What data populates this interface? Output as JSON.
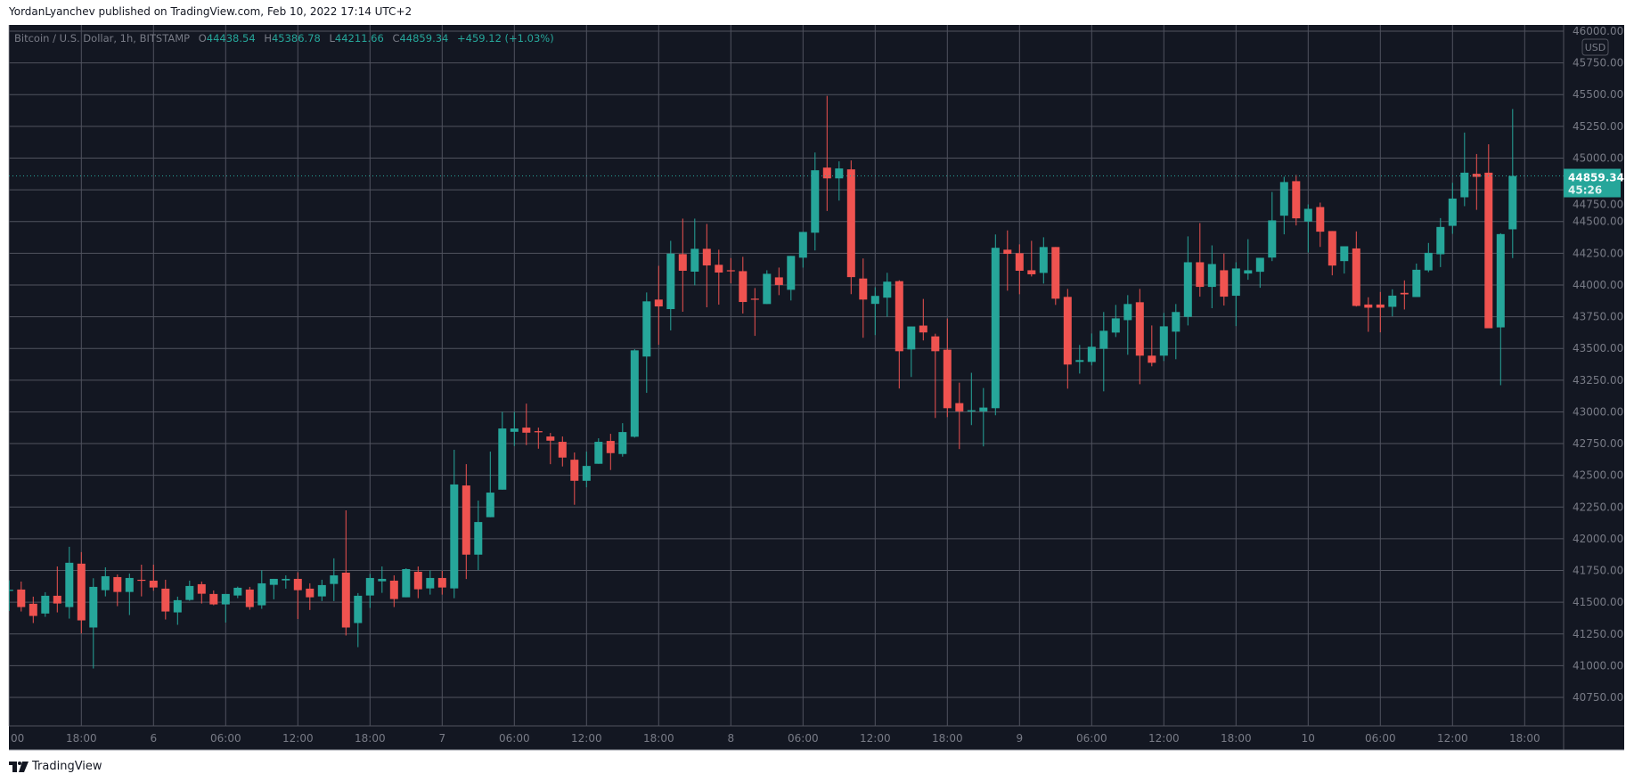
{
  "header": {
    "published": "YordanLyanchev published on TradingView.com, Feb 10, 2022 17:14 UTC+2"
  },
  "legend": {
    "symbol": "Bitcoin / U.S. Dollar, 1h, BITSTAMP",
    "o_label": "O",
    "o_value": "44438.54",
    "h_label": "H",
    "h_value": "45386.78",
    "l_label": "L",
    "l_value": "44211.66",
    "c_label": "C",
    "c_value": "44859.34",
    "change": "+459.12 (+1.03%)"
  },
  "price_axis": {
    "currency": "USD",
    "ticks": [
      46000,
      45750,
      45500,
      45250,
      45000,
      44750,
      44500,
      44250,
      44000,
      43750,
      43500,
      43250,
      43000,
      42750,
      42500,
      42250,
      42000,
      41750,
      41500,
      41250,
      41000,
      40750
    ],
    "tick_labels": [
      "46000.00",
      "45750.00",
      "45500.00",
      "45250.00",
      "45000.00",
      "44750.00",
      "44500.00",
      "44250.00",
      "44000.00",
      "43750.00",
      "43500.00",
      "43250.00",
      "43000.00",
      "42750.00",
      "42500.00",
      "42250.00",
      "42000.00",
      "41750.00",
      "41500.00",
      "41250.00",
      "41000.00",
      "40750.00"
    ],
    "last_price": "44859.34",
    "countdown": "45:26"
  },
  "time_axis": {
    "labels": [
      "00",
      "18:00",
      "6",
      "06:00",
      "12:00",
      "18:00",
      "7",
      "06:00",
      "12:00",
      "18:00",
      "8",
      "06:00",
      "12:00",
      "18:00",
      "9",
      "06:00",
      "12:00",
      "18:00",
      "10",
      "06:00",
      "12:00",
      "18:00"
    ]
  },
  "colors": {
    "up": "#26a69a",
    "down": "#ef5350",
    "background": "#131722",
    "grid": "#50535e",
    "axis_text": "#787b86"
  },
  "footer": {
    "brand": "TradingView"
  },
  "chart_data": {
    "type": "candlestick",
    "symbol": "Bitcoin / U.S. Dollar",
    "interval": "1h",
    "exchange": "BITSTAMP",
    "ylim": [
      40750,
      46000
    ],
    "grid": true,
    "fields": [
      "time",
      "open",
      "high",
      "low",
      "close"
    ],
    "candles": [
      [
        "02-05 12:00",
        41590,
        41672,
        41432,
        41598
      ],
      [
        "02-05 13:00",
        41600,
        41663,
        41427,
        41462
      ],
      [
        "02-05 14:00",
        41488,
        41544,
        41336,
        41392
      ],
      [
        "02-05 15:00",
        41411,
        41579,
        41385,
        41551
      ],
      [
        "02-05 16:00",
        41551,
        41782,
        41420,
        41490
      ],
      [
        "02-05 17:00",
        41462,
        41937,
        41371,
        41811
      ],
      [
        "02-05 18:00",
        41804,
        41895,
        41254,
        41357
      ],
      [
        "02-05 19:00",
        41301,
        41689,
        40978,
        41621
      ],
      [
        "02-05 20:00",
        41595,
        41775,
        41546,
        41705
      ],
      [
        "02-05 21:00",
        41698,
        41719,
        41469,
        41581
      ],
      [
        "02-05 22:00",
        41581,
        41726,
        41399,
        41691
      ],
      [
        "02-05 23:00",
        41677,
        41796,
        41546,
        41673
      ],
      [
        "02-06 00:00",
        41670,
        41796,
        41591,
        41616
      ],
      [
        "02-06 01:00",
        41607,
        41677,
        41364,
        41427
      ],
      [
        "02-06 02:00",
        41420,
        41544,
        41322,
        41516
      ],
      [
        "02-06 03:00",
        41518,
        41670,
        41511,
        41628
      ],
      [
        "02-06 04:00",
        41642,
        41663,
        41490,
        41567
      ],
      [
        "02-06 05:00",
        41565,
        41593,
        41476,
        41483
      ],
      [
        "02-06 06:00",
        41483,
        41565,
        41340,
        41565
      ],
      [
        "02-06 07:00",
        41553,
        41623,
        41532,
        41614
      ],
      [
        "02-06 08:00",
        41600,
        41621,
        41441,
        41462
      ],
      [
        "02-06 09:00",
        41476,
        41752,
        41448,
        41649
      ],
      [
        "02-06 10:00",
        41637,
        41684,
        41523,
        41684
      ],
      [
        "02-06 11:00",
        41672,
        41712,
        41607,
        41684
      ],
      [
        "02-06 12:00",
        41684,
        41736,
        41368,
        41595
      ],
      [
        "02-06 13:00",
        41607,
        41649,
        41439,
        41539
      ],
      [
        "02-06 14:00",
        41546,
        41677,
        41509,
        41635
      ],
      [
        "02-06 15:00",
        41644,
        41846,
        41509,
        41712
      ],
      [
        "02-06 16:00",
        41733,
        42224,
        41238,
        41301
      ],
      [
        "02-06 17:00",
        41336,
        41572,
        41146,
        41551
      ],
      [
        "02-06 18:00",
        41553,
        41724,
        41455,
        41691
      ],
      [
        "02-06 19:00",
        41665,
        41782,
        41574,
        41684
      ],
      [
        "02-06 20:00",
        41670,
        41712,
        41462,
        41525
      ],
      [
        "02-06 21:00",
        41539,
        41768,
        41539,
        41761
      ],
      [
        "02-06 22:00",
        41740,
        41782,
        41532,
        41602
      ],
      [
        "02-06 23:00",
        41609,
        41750,
        41560,
        41691
      ],
      [
        "02-07 00:00",
        41691,
        41747,
        41560,
        41616
      ],
      [
        "02-07 01:00",
        41609,
        42701,
        41532,
        42428
      ],
      [
        "02-07 02:00",
        42420,
        42588,
        41683,
        41875
      ],
      [
        "02-07 03:00",
        41875,
        42301,
        41753,
        42132
      ],
      [
        "02-07 04:00",
        42170,
        42687,
        42170,
        42364
      ],
      [
        "02-07 05:00",
        42387,
        43000,
        42387,
        42869
      ],
      [
        "02-07 06:00",
        42843,
        43000,
        42731,
        42869
      ],
      [
        "02-07 07:00",
        42876,
        43065,
        42738,
        42836
      ],
      [
        "02-07 08:00",
        42848,
        42876,
        42710,
        42839
      ],
      [
        "02-07 09:00",
        42806,
        42834,
        42588,
        42773
      ],
      [
        "02-07 10:00",
        42764,
        42806,
        42570,
        42640
      ],
      [
        "02-07 11:00",
        42623,
        42680,
        42268,
        42457
      ],
      [
        "02-07 12:00",
        42457,
        42687,
        42406,
        42574
      ],
      [
        "02-07 13:00",
        42591,
        42792,
        42591,
        42764
      ],
      [
        "02-07 14:00",
        42771,
        42827,
        42542,
        42675
      ],
      [
        "02-07 15:00",
        42668,
        42911,
        42647,
        42841
      ],
      [
        "02-07 16:00",
        42804,
        43494,
        42797,
        43485
      ],
      [
        "02-07 17:00",
        43436,
        43941,
        43150,
        43871
      ],
      [
        "02-07 18:00",
        43885,
        44151,
        43529,
        43831
      ],
      [
        "02-07 19:00",
        43810,
        44348,
        43642,
        44247
      ],
      [
        "02-07 20:00",
        44243,
        44523,
        43789,
        44112
      ],
      [
        "02-07 21:00",
        44105,
        44523,
        43997,
        44285
      ],
      [
        "02-07 22:00",
        44285,
        44481,
        43824,
        44154
      ],
      [
        "02-07 23:00",
        44159,
        44278,
        43845,
        44098
      ],
      [
        "02-08 00:00",
        44116,
        44212,
        44013,
        44112
      ],
      [
        "02-08 01:00",
        44109,
        44222,
        43775,
        43866
      ],
      [
        "02-08 02:00",
        43892,
        43976,
        43599,
        43887
      ],
      [
        "02-08 03:00",
        43850,
        44116,
        43850,
        44088
      ],
      [
        "02-08 04:00",
        44060,
        44137,
        43920,
        44000
      ],
      [
        "02-08 05:00",
        43962,
        44229,
        43878,
        44229
      ],
      [
        "02-08 06:00",
        44215,
        44418,
        44137,
        44418
      ],
      [
        "02-08 07:00",
        44412,
        45044,
        44272,
        44904
      ],
      [
        "02-08 08:00",
        44925,
        45490,
        44583,
        44840
      ],
      [
        "02-08 09:00",
        44840,
        44974,
        44665,
        44918
      ],
      [
        "02-08 10:00",
        44911,
        44981,
        43928,
        44062
      ],
      [
        "02-08 11:00",
        44051,
        44209,
        43584,
        43885
      ],
      [
        "02-08 12:00",
        43851,
        43982,
        43605,
        43914
      ],
      [
        "02-08 13:00",
        43900,
        44096,
        43750,
        44026
      ],
      [
        "02-08 14:00",
        44030,
        44037,
        43184,
        43478
      ],
      [
        "02-08 15:00",
        43492,
        43673,
        43275,
        43673
      ],
      [
        "02-08 16:00",
        43680,
        43890,
        43563,
        43626
      ],
      [
        "02-08 17:00",
        43595,
        43616,
        42952,
        43478
      ],
      [
        "02-08 18:00",
        43490,
        43736,
        42959,
        43029
      ],
      [
        "02-08 19:00",
        43069,
        43230,
        42707,
        43004
      ],
      [
        "02-08 20:00",
        43004,
        43308,
        42896,
        43013
      ],
      [
        "02-08 21:00",
        43004,
        43188,
        42728,
        43034
      ],
      [
        "02-08 22:00",
        43029,
        44398,
        42973,
        44293
      ],
      [
        "02-08 23:00",
        44278,
        44430,
        43955,
        44245
      ],
      [
        "02-09 00:00",
        44250,
        44320,
        43927,
        44112
      ],
      [
        "02-09 01:00",
        44116,
        44348,
        44067,
        44084
      ],
      [
        "02-09 02:00",
        44095,
        44376,
        44011,
        44299
      ],
      [
        "02-09 03:00",
        44299,
        44299,
        43843,
        43892
      ],
      [
        "02-09 04:00",
        43906,
        43969,
        43183,
        43373
      ],
      [
        "02-09 05:00",
        43394,
        43527,
        43302,
        43408
      ],
      [
        "02-09 06:00",
        43394,
        43618,
        43366,
        43513
      ],
      [
        "02-09 07:00",
        43497,
        43787,
        43162,
        43639
      ],
      [
        "02-09 08:00",
        43625,
        43843,
        43590,
        43737
      ],
      [
        "02-09 09:00",
        43723,
        43920,
        43450,
        43850
      ],
      [
        "02-09 10:00",
        43864,
        43969,
        43218,
        43443
      ],
      [
        "02-09 11:00",
        43443,
        43681,
        43359,
        43387
      ],
      [
        "02-09 12:00",
        43443,
        43780,
        43401,
        43674
      ],
      [
        "02-09 13:00",
        43632,
        43850,
        43415,
        43787
      ],
      [
        "02-09 14:00",
        43749,
        44383,
        43681,
        44179
      ],
      [
        "02-09 15:00",
        44179,
        44488,
        43908,
        43985
      ],
      [
        "02-09 16:00",
        43985,
        44312,
        43817,
        44165
      ],
      [
        "02-09 17:00",
        44116,
        44247,
        43838,
        43908
      ],
      [
        "02-09 18:00",
        43915,
        44179,
        43676,
        44130
      ],
      [
        "02-09 19:00",
        44090,
        44361,
        44041,
        44116
      ],
      [
        "02-09 20:00",
        44104,
        44214,
        43978,
        44214
      ],
      [
        "02-09 21:00",
        44216,
        44733,
        44188,
        44509
      ],
      [
        "02-09 22:00",
        44546,
        44853,
        44399,
        44811
      ],
      [
        "02-09 23:00",
        44818,
        44867,
        44469,
        44525
      ],
      [
        "02-10 00:00",
        44500,
        44635,
        44256,
        44600
      ],
      [
        "02-10 01:00",
        44614,
        44649,
        44300,
        44420
      ],
      [
        "02-10 02:00",
        44425,
        44425,
        44076,
        44153
      ],
      [
        "02-10 03:00",
        44188,
        44305,
        44090,
        44305
      ],
      [
        "02-10 04:00",
        44288,
        44422,
        43830,
        43835
      ],
      [
        "02-10 05:00",
        43846,
        43903,
        43631,
        43821
      ],
      [
        "02-10 06:00",
        43846,
        43945,
        43627,
        43821
      ],
      [
        "02-10 07:00",
        43828,
        43966,
        43753,
        43916
      ],
      [
        "02-10 08:00",
        43938,
        44036,
        43807,
        43926
      ],
      [
        "02-10 09:00",
        43905,
        44169,
        43905,
        44120
      ],
      [
        "02-10 10:00",
        44115,
        44331,
        44101,
        44253
      ],
      [
        "02-10 11:00",
        44242,
        44527,
        44141,
        44457
      ],
      [
        "02-10 12:00",
        44466,
        44805,
        44403,
        44681
      ],
      [
        "02-10 13:00",
        44691,
        45201,
        44621,
        44885
      ],
      [
        "02-10 14:00",
        44876,
        45032,
        44592,
        44852
      ],
      [
        "02-10 15:00",
        44885,
        45109,
        43659,
        43659
      ],
      [
        "02-10 16:00",
        43666,
        44408,
        43210,
        44401
      ],
      [
        "02-10 17:00",
        44438.54,
        45386.78,
        44211.66,
        44859.34
      ]
    ]
  }
}
